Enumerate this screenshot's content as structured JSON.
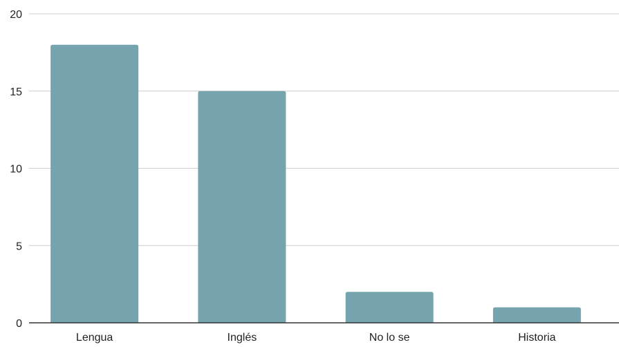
{
  "chart_data": {
    "type": "bar",
    "title": "",
    "xlabel": "",
    "ylabel": "",
    "categories": [
      "Lengua",
      "Inglés",
      "No lo se",
      "Historia"
    ],
    "values": [
      18,
      15,
      2,
      1
    ],
    "ylim": [
      0,
      20
    ],
    "yticks": [
      0,
      5,
      10,
      15,
      20
    ],
    "grid": true,
    "legend": "none",
    "colors": {
      "bar": "#75a4af",
      "grid": "#cccccc",
      "axis": "#333333",
      "text": "#222222"
    }
  }
}
